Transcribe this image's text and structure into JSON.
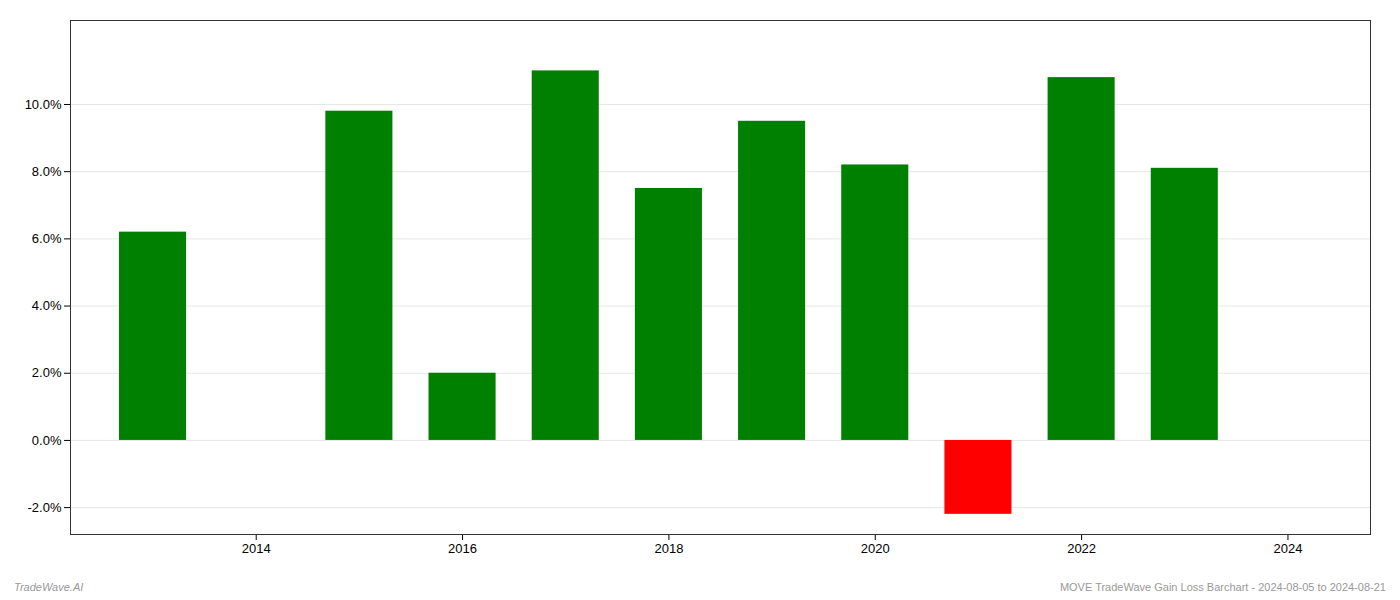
{
  "chart_data": {
    "type": "bar",
    "x": [
      2013,
      2015,
      2016,
      2017,
      2018,
      2019,
      2020,
      2021,
      2022,
      2023
    ],
    "values": [
      0.062,
      0.098,
      0.02,
      0.11,
      0.075,
      0.095,
      0.082,
      -0.022,
      0.108,
      0.081
    ],
    "colors": [
      "#008000",
      "#008000",
      "#008000",
      "#008000",
      "#008000",
      "#008000",
      "#008000",
      "#ff0000",
      "#008000",
      "#008000"
    ],
    "xlim": [
      2012.2,
      2024.8
    ],
    "xticks": [
      2014,
      2016,
      2018,
      2020,
      2022,
      2024
    ],
    "ylim": [
      -0.028,
      0.125
    ],
    "yticks": [
      {
        "value": -0.02,
        "label": "-2.0%"
      },
      {
        "value": 0.0,
        "label": "0.0%"
      },
      {
        "value": 0.02,
        "label": "2.0%"
      },
      {
        "value": 0.04,
        "label": "4.0%"
      },
      {
        "value": 0.06,
        "label": "6.0%"
      },
      {
        "value": 0.08,
        "label": "8.0%"
      },
      {
        "value": 0.1,
        "label": "10.0%"
      }
    ],
    "grid": true,
    "annotations": [
      "TradeWave.AI",
      "MOVE TradeWave Gain Loss Barchart - 2024-08-05 to 2024-08-21"
    ]
  }
}
